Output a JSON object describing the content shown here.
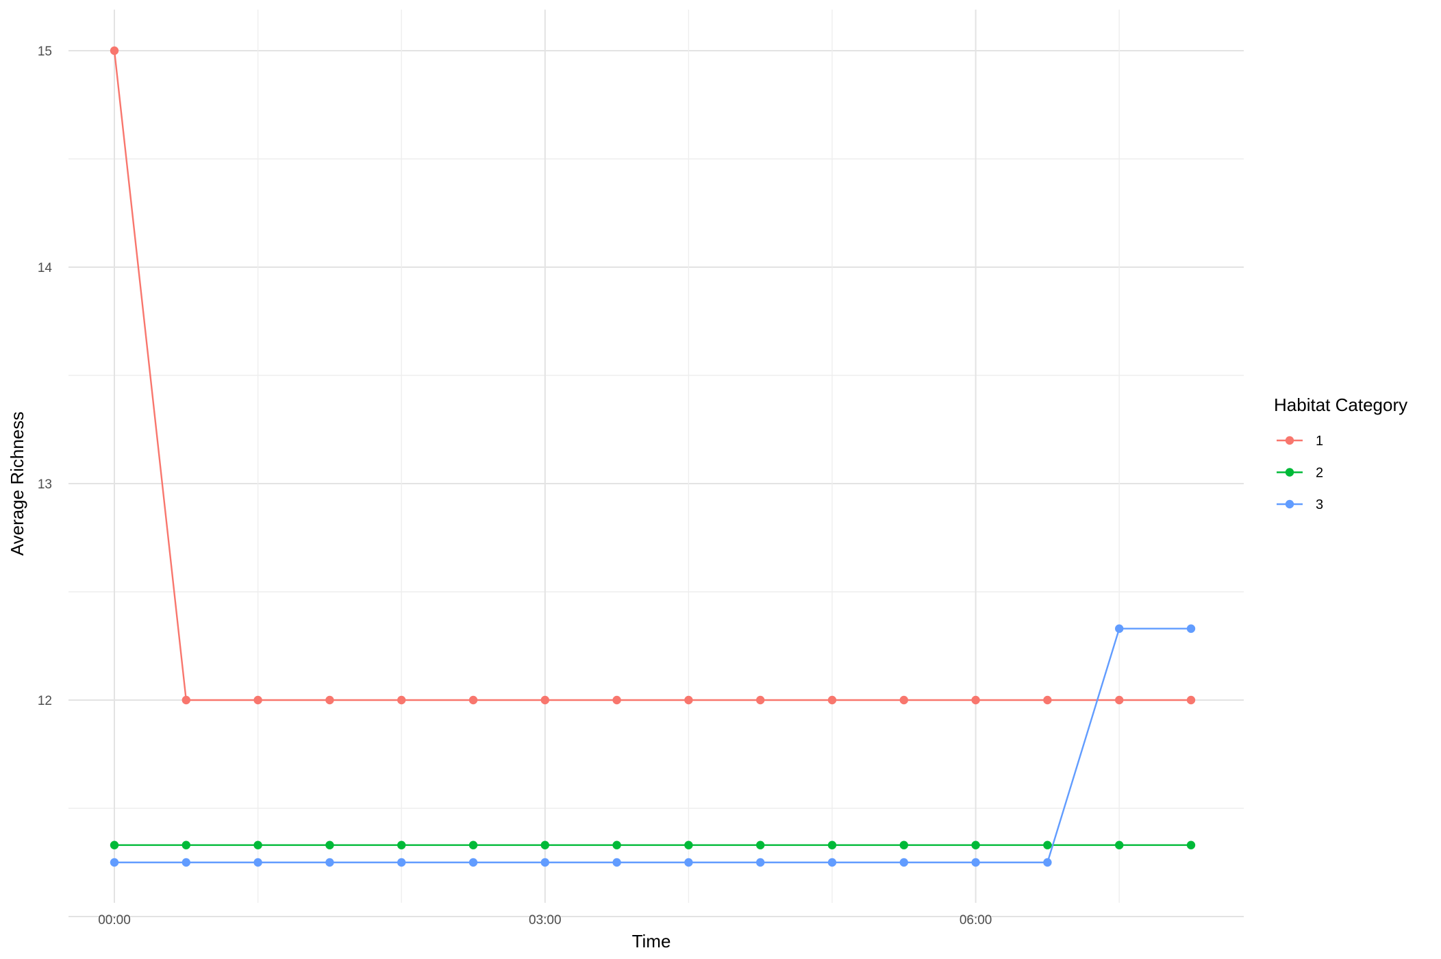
{
  "chart_data": {
    "type": "line",
    "xlabel": "Time",
    "ylabel": "Average Richness",
    "legend_title": "Habitat Category",
    "legend_position": "right",
    "grid": true,
    "x": [
      "00:00",
      "00:30",
      "01:00",
      "01:30",
      "02:00",
      "02:30",
      "03:00",
      "03:30",
      "04:00",
      "04:30",
      "05:00",
      "05:30",
      "06:00",
      "06:30",
      "07:00",
      "07:30"
    ],
    "x_ticks": [
      "00:00",
      "03:00",
      "06:00"
    ],
    "ylim": [
      11.0,
      15.15
    ],
    "y_ticks": [
      12,
      13,
      14,
      15
    ],
    "series": [
      {
        "name": "1",
        "color": "#F8766D",
        "values": [
          15,
          12,
          12,
          12,
          12,
          12,
          12,
          12,
          12,
          12,
          12,
          12,
          12,
          12,
          12,
          12
        ]
      },
      {
        "name": "2",
        "color": "#00BA38",
        "values": [
          11.33,
          11.33,
          11.33,
          11.33,
          11.33,
          11.33,
          11.33,
          11.33,
          11.33,
          11.33,
          11.33,
          11.33,
          11.33,
          11.33,
          11.33,
          11.33
        ]
      },
      {
        "name": "3",
        "color": "#619CFF",
        "values": [
          11.25,
          11.25,
          11.25,
          11.25,
          11.25,
          11.25,
          11.25,
          11.25,
          11.25,
          11.25,
          11.25,
          11.25,
          11.25,
          11.25,
          12.33,
          12.33
        ]
      }
    ]
  }
}
